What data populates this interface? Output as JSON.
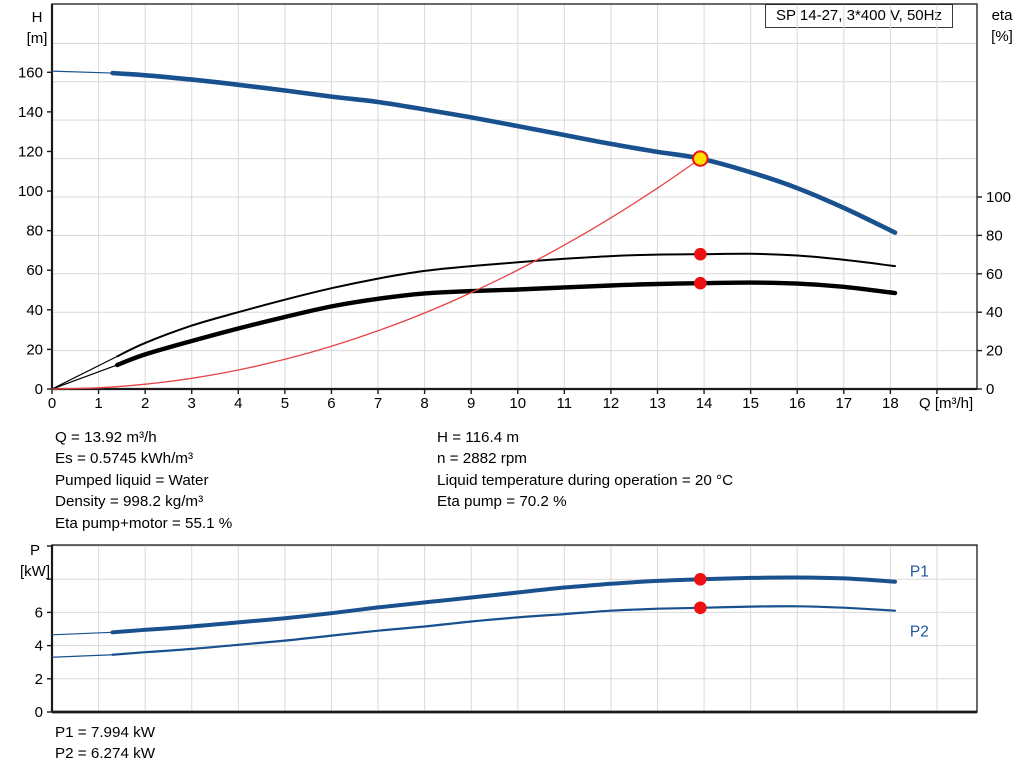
{
  "header": {
    "variant_label": "SP 14-27, 3*400 V, 50Hz"
  },
  "colors": {
    "curve_blue": "#19518e",
    "curve_black": "#000000",
    "system_red": "#e84343",
    "dot_red": "#ee1111",
    "duty_yellow": "#ffe000",
    "grid": "#d9d9d9",
    "border": "#1a1a1a",
    "label_blue": "#1f56a0",
    "text": "#000000"
  },
  "chart_data": [
    {
      "type": "line",
      "name": "head-efficiency-chart",
      "x_axis": {
        "label": "Q [m³/h]",
        "min": 0,
        "max": 19.86,
        "labeled_ticks": [
          0,
          1,
          2,
          3,
          4,
          5,
          6,
          7,
          8,
          9,
          10,
          11,
          12,
          13,
          14,
          15,
          16,
          17,
          18
        ],
        "unlabeled_ticks": [
          19
        ],
        "gridlines": [
          1,
          2,
          3,
          4,
          5,
          6,
          7,
          8,
          9,
          10,
          11,
          12,
          13,
          14,
          15,
          16,
          17,
          18,
          19
        ]
      },
      "y_left": {
        "label_lines": [
          "H",
          "[m]"
        ],
        "min": 0,
        "max": 194.5,
        "labeled_ticks": [
          0,
          20,
          40,
          60,
          80,
          100,
          120,
          140,
          160
        ]
      },
      "y_right": {
        "label_lines": [
          "eta",
          "[%]"
        ],
        "min": 0,
        "max": 200.5,
        "labeled_ticks": [
          0,
          20,
          40,
          60,
          80,
          100
        ],
        "gridlines": [
          20,
          40,
          60,
          80,
          100,
          120,
          140,
          160,
          180
        ]
      },
      "series": [
        {
          "name": "pump-head-curve",
          "axis": "left",
          "color": "#19518e",
          "width": 4.6,
          "thin_points": [
            [
              0,
              160.6
            ],
            [
              1.3,
              159.6
            ]
          ],
          "points": [
            [
              1.3,
              159.6
            ],
            [
              2,
              158.5
            ],
            [
              3,
              156.3
            ],
            [
              4,
              153.7
            ],
            [
              5,
              150.8
            ],
            [
              6,
              147.7
            ],
            [
              7,
              145.0
            ],
            [
              8,
              141.2
            ],
            [
              9,
              137.2
            ],
            [
              10,
              132.8
            ],
            [
              11,
              128.3
            ],
            [
              12,
              123.8
            ],
            [
              13,
              119.8
            ],
            [
              13.92,
              116.4
            ],
            [
              15,
              109.5
            ],
            [
              16,
              101.5
            ],
            [
              17,
              91.5
            ],
            [
              18.1,
              79
            ]
          ]
        },
        {
          "name": "eta-pump-curve",
          "axis": "right",
          "color": "#000000",
          "width": 2,
          "thin_points": [
            [
              0,
              0
            ],
            [
              1.4,
              17
            ]
          ],
          "points": [
            [
              1.4,
              17
            ],
            [
              2,
              24
            ],
            [
              3,
              33
            ],
            [
              4,
              40
            ],
            [
              5,
              46.5
            ],
            [
              6,
              52.5
            ],
            [
              7,
              57.5
            ],
            [
              8,
              61.5
            ],
            [
              9,
              64
            ],
            [
              10,
              66
            ],
            [
              11,
              67.8
            ],
            [
              12,
              69.2
            ],
            [
              13,
              70
            ],
            [
              13.92,
              70.2
            ],
            [
              15,
              70.4
            ],
            [
              16,
              69.5
            ],
            [
              17,
              67.3
            ],
            [
              18.1,
              64
            ]
          ]
        },
        {
          "name": "eta-pump-motor-curve",
          "axis": "right",
          "color": "#000000",
          "width": 4.4,
          "thin_points": [
            [
              0,
              0
            ],
            [
              1.4,
              12.5
            ]
          ],
          "points": [
            [
              1.4,
              12.5
            ],
            [
              2,
              18
            ],
            [
              3,
              25
            ],
            [
              4,
              31.5
            ],
            [
              5,
              37.5
            ],
            [
              6,
              43
            ],
            [
              7,
              47
            ],
            [
              8,
              49.8
            ],
            [
              9,
              51
            ],
            [
              10,
              51.8
            ],
            [
              11,
              52.9
            ],
            [
              12,
              53.9
            ],
            [
              13,
              54.7
            ],
            [
              13.92,
              55.1
            ],
            [
              15,
              55.4
            ],
            [
              16,
              54.9
            ],
            [
              17,
              53.2
            ],
            [
              18.1,
              50
            ]
          ]
        },
        {
          "name": "system-curve",
          "axis": "left",
          "color": "#e84343",
          "width": 1.3,
          "points": [
            [
              0,
              0
            ],
            [
              1,
              0.6
            ],
            [
              2,
              2.4
            ],
            [
              3,
              5.4
            ],
            [
              4,
              9.6
            ],
            [
              5,
              15
            ],
            [
              6,
              21.6
            ],
            [
              7,
              29.4
            ],
            [
              8,
              38.4
            ],
            [
              9,
              48.7
            ],
            [
              10,
              60.1
            ],
            [
              11,
              72.7
            ],
            [
              12,
              86.5
            ],
            [
              13,
              101.5
            ],
            [
              13.92,
              116.4
            ]
          ]
        }
      ],
      "markers": [
        {
          "name": "duty-point",
          "axis": "left",
          "q": 13.92,
          "value": 116.4,
          "style": "duty"
        },
        {
          "name": "eta-pump-point",
          "axis": "right",
          "q": 13.92,
          "value": 70.2,
          "style": "dot"
        },
        {
          "name": "eta-pump-motor-point",
          "axis": "right",
          "q": 13.92,
          "value": 55.1,
          "style": "dot"
        }
      ]
    },
    {
      "type": "line",
      "name": "power-chart",
      "x_axis": {
        "label": "",
        "min": 0,
        "max": 19.86,
        "labeled_ticks": [],
        "unlabeled_ticks": [],
        "gridlines": [
          1,
          2,
          3,
          4,
          5,
          6,
          7,
          8,
          9,
          10,
          11,
          12,
          13,
          14,
          15,
          16,
          17,
          18,
          19
        ]
      },
      "y_left": {
        "label_lines": [
          "P",
          "[kW]"
        ],
        "min": 0,
        "max": 10.06,
        "labeled_ticks": [
          0,
          2,
          4,
          6
        ],
        "unlabeled_ticks": [
          8,
          10
        ],
        "gridlines": [
          2,
          4,
          6,
          8,
          10
        ]
      },
      "series": [
        {
          "name": "p1-curve",
          "axis": "left",
          "color": "#19518e",
          "width": 4,
          "label": "P1",
          "label_at": [
            18.42,
            8.45
          ],
          "thin_points": [
            [
              0,
              4.65
            ],
            [
              1.3,
              4.8
            ]
          ],
          "points": [
            [
              1.3,
              4.8
            ],
            [
              2,
              4.95
            ],
            [
              3,
              5.15
            ],
            [
              4,
              5.4
            ],
            [
              5,
              5.65
            ],
            [
              6,
              5.95
            ],
            [
              7,
              6.3
            ],
            [
              8,
              6.6
            ],
            [
              9,
              6.9
            ],
            [
              10,
              7.2
            ],
            [
              11,
              7.5
            ],
            [
              12,
              7.72
            ],
            [
              13,
              7.9
            ],
            [
              13.92,
              7.994
            ],
            [
              15,
              8.08
            ],
            [
              16,
              8.1
            ],
            [
              17,
              8.05
            ],
            [
              18.1,
              7.85
            ]
          ]
        },
        {
          "name": "p2-curve",
          "axis": "left",
          "color": "#19518e",
          "width": 2.2,
          "label": "P2",
          "label_at": [
            18.42,
            4.85
          ],
          "thin_points": [
            [
              0,
              3.3
            ],
            [
              1.3,
              3.45
            ]
          ],
          "points": [
            [
              1.3,
              3.45
            ],
            [
              2,
              3.6
            ],
            [
              3,
              3.8
            ],
            [
              4,
              4.05
            ],
            [
              5,
              4.3
            ],
            [
              6,
              4.6
            ],
            [
              7,
              4.9
            ],
            [
              8,
              5.15
            ],
            [
              9,
              5.45
            ],
            [
              10,
              5.7
            ],
            [
              11,
              5.9
            ],
            [
              12,
              6.1
            ],
            [
              13,
              6.22
            ],
            [
              13.92,
              6.274
            ],
            [
              15,
              6.35
            ],
            [
              16,
              6.37
            ],
            [
              17,
              6.28
            ],
            [
              18.1,
              6.1
            ]
          ]
        }
      ],
      "markers": [
        {
          "name": "p1-point",
          "axis": "left",
          "q": 13.92,
          "value": 7.994,
          "style": "dot"
        },
        {
          "name": "p2-point",
          "axis": "left",
          "q": 13.92,
          "value": 6.274,
          "style": "dot"
        }
      ]
    }
  ],
  "info": {
    "left": [
      "Q = 13.92 m³/h",
      "Es = 0.5745 kWh/m³",
      "Pumped liquid = Water",
      "Density = 998.2 kg/m³",
      "Eta pump+motor = 55.1 %"
    ],
    "right": [
      "H = 116.4 m",
      "n = 2882 rpm",
      "Liquid temperature during operation = 20 °C",
      "Eta pump = 70.2 %"
    ]
  },
  "power_results": {
    "p1": "P1 = 7.994 kW",
    "p2": "P2 = 6.274 kW"
  }
}
